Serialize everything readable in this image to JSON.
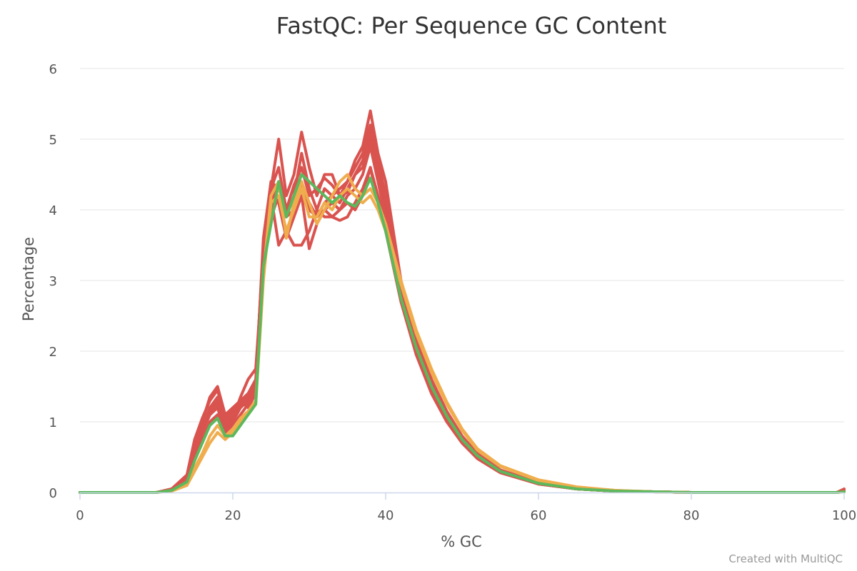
{
  "chart_data": {
    "type": "line",
    "title": "FastQC: Per Sequence GC Content",
    "xlabel": "% GC",
    "ylabel": "Percentage",
    "xlim": [
      0,
      100
    ],
    "ylim": [
      0,
      6
    ],
    "x_ticks": [
      0,
      20,
      40,
      60,
      80,
      100
    ],
    "y_ticks": [
      0,
      1,
      2,
      3,
      4,
      5,
      6
    ],
    "grid": true,
    "legend": "none",
    "colors": {
      "fail": "#d9534f",
      "warn": "#f0ad4e",
      "pass": "#5cb85c"
    },
    "series": [
      {
        "status": "fail",
        "x": [
          0,
          10,
          12,
          14,
          15,
          16,
          17,
          18,
          19,
          20,
          21,
          22,
          23,
          24,
          25,
          26,
          27,
          28,
          29,
          30,
          31,
          32,
          33,
          34,
          35,
          36,
          37,
          38,
          39,
          40,
          42,
          44,
          46,
          48,
          50,
          52,
          55,
          60,
          65,
          70,
          75,
          80,
          99,
          100
        ],
        "y": [
          0,
          0,
          0.05,
          0.25,
          0.75,
          1.05,
          1.3,
          1.45,
          1.05,
          1.15,
          1.3,
          1.4,
          1.6,
          3.5,
          4.3,
          5.0,
          4.2,
          4.5,
          5.1,
          4.6,
          4.2,
          4.5,
          4.5,
          4.2,
          4.4,
          4.7,
          4.9,
          5.4,
          4.8,
          4.4,
          3.0,
          2.2,
          1.6,
          1.15,
          0.8,
          0.55,
          0.32,
          0.14,
          0.06,
          0.02,
          0.01,
          0,
          0,
          0.05
        ]
      },
      {
        "status": "fail",
        "x": [
          0,
          10,
          12,
          14,
          15,
          16,
          17,
          18,
          19,
          20,
          21,
          22,
          23,
          24,
          25,
          26,
          27,
          28,
          29,
          30,
          31,
          32,
          33,
          34,
          35,
          36,
          37,
          38,
          39,
          40,
          42,
          44,
          46,
          48,
          50,
          52,
          55,
          60,
          65,
          70,
          75,
          80,
          99,
          100
        ],
        "y": [
          0,
          0,
          0.04,
          0.2,
          0.6,
          0.9,
          1.2,
          1.3,
          0.9,
          1.05,
          1.35,
          1.6,
          1.75,
          3.3,
          4.1,
          4.4,
          3.9,
          4.2,
          4.8,
          4.3,
          4.0,
          4.3,
          4.2,
          4.1,
          4.3,
          4.5,
          4.7,
          5.1,
          4.6,
          4.1,
          2.9,
          2.1,
          1.5,
          1.1,
          0.75,
          0.52,
          0.3,
          0.13,
          0.05,
          0.02,
          0.01,
          0,
          0,
          0.03
        ]
      },
      {
        "status": "fail",
        "x": [
          0,
          10,
          12,
          14,
          15,
          16,
          17,
          18,
          19,
          20,
          21,
          22,
          23,
          24,
          25,
          26,
          27,
          28,
          29,
          30,
          31,
          32,
          33,
          34,
          35,
          36,
          37,
          38,
          39,
          40,
          42,
          44,
          46,
          48,
          50,
          52,
          55,
          60,
          65,
          70,
          75,
          80,
          99,
          100
        ],
        "y": [
          0,
          0,
          0.03,
          0.18,
          0.55,
          0.85,
          1.1,
          1.2,
          0.85,
          1.0,
          1.2,
          1.3,
          1.5,
          3.6,
          4.4,
          4.1,
          3.6,
          3.9,
          4.2,
          3.45,
          3.8,
          4.0,
          3.9,
          3.85,
          3.9,
          4.1,
          4.3,
          4.6,
          4.2,
          3.8,
          2.8,
          2.0,
          1.45,
          1.05,
          0.72,
          0.5,
          0.29,
          0.12,
          0.05,
          0.02,
          0.01,
          0,
          0,
          0.02
        ]
      },
      {
        "status": "fail",
        "x": [
          0,
          10,
          12,
          14,
          15,
          16,
          17,
          18,
          19,
          20,
          21,
          22,
          23,
          24,
          25,
          26,
          27,
          28,
          29,
          30,
          31,
          32,
          33,
          34,
          35,
          36,
          37,
          38,
          39,
          40,
          42,
          44,
          46,
          48,
          50,
          52,
          55,
          60,
          65,
          70,
          75,
          80,
          99,
          100
        ],
        "y": [
          0,
          0,
          0.05,
          0.22,
          0.7,
          1.0,
          1.35,
          1.5,
          1.1,
          1.2,
          1.3,
          1.2,
          1.4,
          3.4,
          4.2,
          3.5,
          3.7,
          3.5,
          3.5,
          3.7,
          4.0,
          3.9,
          3.9,
          4.0,
          4.1,
          4.0,
          4.2,
          4.6,
          4.1,
          3.7,
          2.7,
          1.95,
          1.4,
          1.0,
          0.7,
          0.48,
          0.28,
          0.12,
          0.05,
          0.02,
          0.01,
          0,
          0,
          0.02
        ]
      },
      {
        "status": "fail",
        "x": [
          0,
          10,
          12,
          14,
          15,
          16,
          17,
          18,
          19,
          20,
          21,
          22,
          23,
          24,
          25,
          26,
          27,
          28,
          29,
          30,
          31,
          32,
          33,
          34,
          35,
          36,
          37,
          38,
          39,
          40,
          42,
          44,
          46,
          48,
          50,
          52,
          55,
          60,
          65,
          70,
          75,
          80,
          99,
          100
        ],
        "y": [
          0,
          0,
          0.03,
          0.15,
          0.5,
          0.75,
          1.0,
          1.1,
          0.8,
          0.95,
          1.1,
          1.25,
          1.4,
          3.5,
          4.4,
          4.3,
          4.0,
          4.1,
          4.4,
          4.0,
          3.9,
          4.1,
          4.2,
          4.3,
          4.4,
          4.6,
          4.8,
          5.2,
          4.7,
          4.2,
          3.0,
          2.15,
          1.55,
          1.1,
          0.76,
          0.52,
          0.3,
          0.13,
          0.05,
          0.02,
          0.01,
          0,
          0,
          0.03
        ]
      },
      {
        "status": "fail",
        "x": [
          0,
          10,
          12,
          14,
          15,
          16,
          17,
          18,
          19,
          20,
          21,
          22,
          23,
          24,
          25,
          26,
          27,
          28,
          29,
          30,
          31,
          32,
          33,
          34,
          35,
          36,
          37,
          38,
          39,
          40,
          42,
          44,
          46,
          48,
          50,
          52,
          55,
          60,
          65,
          70,
          75,
          80,
          99,
          100
        ],
        "y": [
          0,
          0,
          0.04,
          0.2,
          0.65,
          0.95,
          1.15,
          1.25,
          0.95,
          1.1,
          1.25,
          1.35,
          1.55,
          3.45,
          4.3,
          4.6,
          4.0,
          4.35,
          4.6,
          4.2,
          4.3,
          4.45,
          4.35,
          4.2,
          4.25,
          4.5,
          4.6,
          5.0,
          4.5,
          4.0,
          2.9,
          2.05,
          1.5,
          1.08,
          0.74,
          0.5,
          0.29,
          0.12,
          0.05,
          0.02,
          0.01,
          0,
          0,
          0.02
        ]
      },
      {
        "status": "fail",
        "x": [
          0,
          10,
          12,
          14,
          15,
          16,
          17,
          18,
          19,
          20,
          21,
          22,
          23,
          24,
          25,
          26,
          27,
          28,
          29,
          30,
          31,
          32,
          33,
          34,
          35,
          36,
          37,
          38,
          39,
          40,
          42,
          44,
          46,
          48,
          50,
          52,
          55,
          60,
          65,
          70,
          75,
          80,
          99,
          100
        ],
        "y": [
          0,
          0,
          0.04,
          0.2,
          0.6,
          0.9,
          1.2,
          1.35,
          1.0,
          1.1,
          1.2,
          1.3,
          1.45,
          3.3,
          3.9,
          4.2,
          3.9,
          4.0,
          4.3,
          4.1,
          3.9,
          4.0,
          4.1,
          4.0,
          4.2,
          4.3,
          4.5,
          4.9,
          4.4,
          3.9,
          2.85,
          2.05,
          1.47,
          1.05,
          0.73,
          0.5,
          0.29,
          0.12,
          0.05,
          0.02,
          0.01,
          0,
          0,
          0.02
        ]
      },
      {
        "status": "warn",
        "x": [
          0,
          10,
          12,
          14,
          15,
          16,
          17,
          18,
          19,
          20,
          21,
          22,
          23,
          24,
          25,
          26,
          27,
          28,
          29,
          30,
          31,
          32,
          33,
          34,
          35,
          36,
          37,
          38,
          39,
          40,
          42,
          44,
          46,
          48,
          50,
          52,
          55,
          60,
          65,
          70,
          75,
          80,
          99,
          100
        ],
        "y": [
          0,
          0,
          0.03,
          0.12,
          0.35,
          0.55,
          0.8,
          0.95,
          0.8,
          0.9,
          1.05,
          1.15,
          1.3,
          3.1,
          4.2,
          4.4,
          3.6,
          4.1,
          4.4,
          4.1,
          3.8,
          4.0,
          4.2,
          4.4,
          4.5,
          4.3,
          4.2,
          4.3,
          4.1,
          3.8,
          3.0,
          2.3,
          1.75,
          1.28,
          0.9,
          0.62,
          0.38,
          0.18,
          0.08,
          0.03,
          0.01,
          0,
          0,
          0.01
        ]
      },
      {
        "status": "warn",
        "x": [
          0,
          10,
          12,
          14,
          15,
          16,
          17,
          18,
          19,
          20,
          21,
          22,
          23,
          24,
          25,
          26,
          27,
          28,
          29,
          30,
          31,
          32,
          33,
          34,
          35,
          36,
          37,
          38,
          39,
          40,
          42,
          44,
          46,
          48,
          50,
          52,
          55,
          60,
          65,
          70,
          75,
          80,
          99,
          100
        ],
        "y": [
          0,
          0,
          0.02,
          0.1,
          0.3,
          0.5,
          0.7,
          0.85,
          0.75,
          0.85,
          1.0,
          1.1,
          1.25,
          3.0,
          4.1,
          4.2,
          3.7,
          4.0,
          4.3,
          3.9,
          3.9,
          4.1,
          4.0,
          4.2,
          4.3,
          4.2,
          4.1,
          4.2,
          4.0,
          3.7,
          2.95,
          2.25,
          1.7,
          1.25,
          0.88,
          0.6,
          0.37,
          0.17,
          0.07,
          0.03,
          0.01,
          0,
          0,
          0.01
        ]
      },
      {
        "status": "pass",
        "x": [
          0,
          10,
          12,
          14,
          15,
          16,
          17,
          18,
          19,
          20,
          21,
          22,
          23,
          24,
          25,
          26,
          27,
          28,
          29,
          30,
          31,
          32,
          33,
          34,
          35,
          36,
          37,
          38,
          39,
          40,
          42,
          44,
          46,
          48,
          50,
          52,
          55,
          60,
          65,
          70,
          75,
          80,
          99,
          100
        ],
        "y": [
          0,
          0,
          0.03,
          0.15,
          0.45,
          0.7,
          0.95,
          1.05,
          0.8,
          0.8,
          0.95,
          1.1,
          1.25,
          3.2,
          3.8,
          4.4,
          3.9,
          4.2,
          4.5,
          4.4,
          4.3,
          4.2,
          4.1,
          4.2,
          4.1,
          4.05,
          4.2,
          4.45,
          4.1,
          3.7,
          2.75,
          2.05,
          1.5,
          1.08,
          0.75,
          0.52,
          0.3,
          0.13,
          0.05,
          0.02,
          0.01,
          0,
          0,
          0.01
        ]
      }
    ]
  },
  "credits": "Created with MultiQC"
}
